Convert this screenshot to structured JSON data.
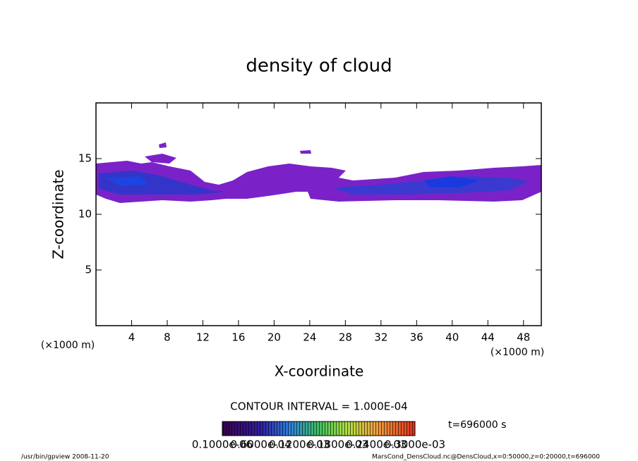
{
  "chart_data": {
    "type": "contour",
    "title": "density of cloud",
    "x_label": "X-coordinate",
    "y_label": "Z-coordinate",
    "x_unit": "(×1000 m)",
    "y_unit": "(×1000 m)",
    "xlim": [
      0,
      50
    ],
    "xticks": [
      4,
      8,
      12,
      16,
      20,
      24,
      28,
      32,
      36,
      40,
      44,
      48
    ],
    "ylim": [
      0,
      20
    ],
    "yticks": [
      5,
      10,
      15
    ],
    "contour_interval": "CONTOUR INTERVAL = 1.000E-04",
    "time": "t=696000 s",
    "colorbar_labels": [
      "0.1000e-06",
      "0.6000e-04",
      "0.1200e-03",
      "0.1800e-03",
      "0.2400e-03",
      "0.3000e-03"
    ],
    "footer_left": "/usr/bin/gpview   2008-11-20",
    "footer_right": "MarsCond_DensCloud.nc@DensCloud,x=0:50000,z=0:20000,t=696000"
  }
}
